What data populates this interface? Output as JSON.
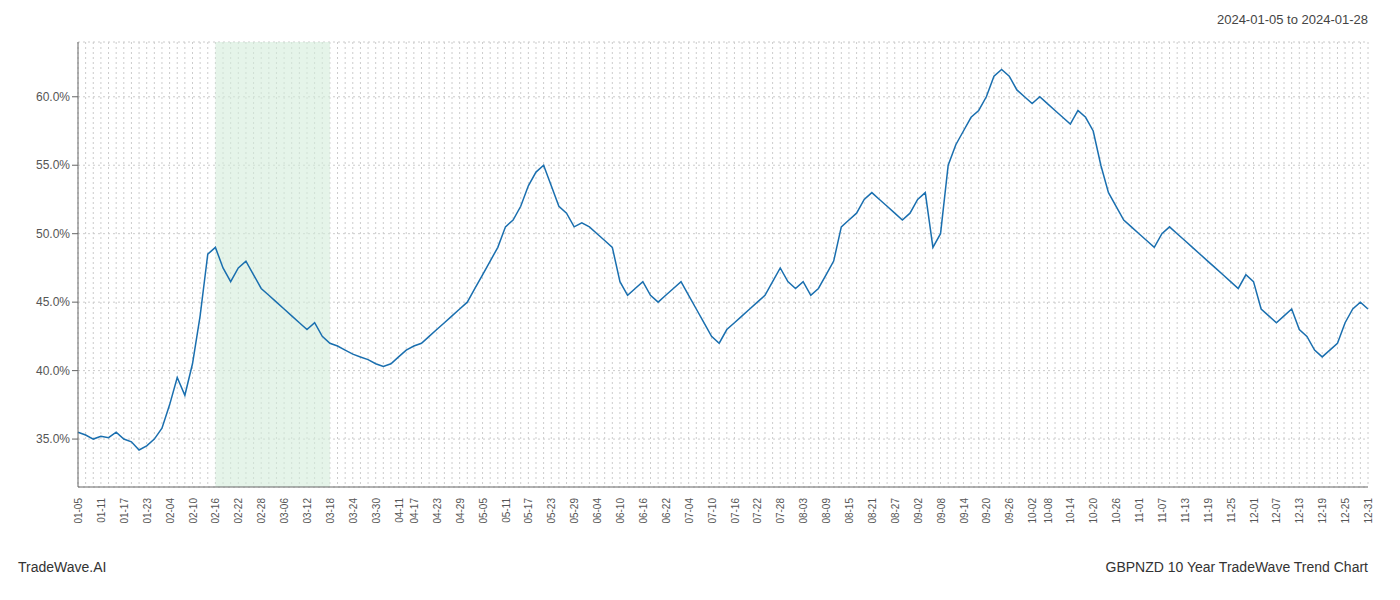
{
  "chart_data": {
    "type": "line",
    "title": "2024-01-05 to 2024-01-28",
    "annotations": [
      "TradeWave.AI",
      "GBPNZD 10 Year TradeWave Trend Chart"
    ],
    "color": "#1a6faf",
    "grid": true,
    "ylim": [
      31.5,
      64.0
    ],
    "yticks": [
      {
        "value": 35.0,
        "label": "35.0%"
      },
      {
        "value": 40.0,
        "label": "40.0%"
      },
      {
        "value": 45.0,
        "label": "45.0%"
      },
      {
        "value": 50.0,
        "label": "50.0%"
      },
      {
        "value": 55.0,
        "label": "55.0%"
      },
      {
        "value": 60.0,
        "label": "60.0%"
      }
    ],
    "shaded_region": {
      "from": "02-16",
      "to": "03-18",
      "color": "#d4edda"
    },
    "categories": [
      "01-05",
      null,
      null,
      "01-11",
      null,
      null,
      "01-17",
      null,
      null,
      "01-23",
      null,
      null,
      "02-04",
      null,
      null,
      "02-10",
      null,
      null,
      "02-16",
      null,
      null,
      "02-22",
      null,
      null,
      "02-28",
      null,
      null,
      "03-06",
      null,
      null,
      "03-12",
      null,
      null,
      "03-18",
      null,
      null,
      "03-24",
      null,
      null,
      "03-30",
      null,
      null,
      "04-11",
      null,
      "04-17",
      null,
      null,
      "04-23",
      null,
      null,
      "04-29",
      null,
      null,
      "05-05",
      null,
      null,
      "05-11",
      null,
      null,
      "05-17",
      null,
      null,
      "05-23",
      null,
      null,
      "05-29",
      null,
      null,
      "06-04",
      null,
      null,
      "06-10",
      null,
      null,
      "06-16",
      null,
      null,
      "06-22",
      null,
      null,
      "07-04",
      null,
      null,
      "07-10",
      null,
      null,
      "07-16",
      null,
      null,
      "07-22",
      null,
      null,
      "07-28",
      null,
      null,
      "08-03",
      null,
      null,
      "08-09",
      null,
      null,
      "08-15",
      null,
      null,
      "08-21",
      null,
      null,
      "08-27",
      null,
      null,
      "09-02",
      null,
      null,
      "09-08",
      null,
      null,
      "09-14",
      null,
      null,
      "09-20",
      null,
      null,
      "09-26",
      null,
      null,
      "10-02",
      null,
      "10-08",
      null,
      null,
      "10-14",
      null,
      null,
      "10-20",
      null,
      null,
      "10-26",
      null,
      null,
      "11-01",
      null,
      null,
      "11-07",
      null,
      null,
      "11-13",
      null,
      null,
      "11-19",
      null,
      null,
      "11-25",
      null,
      null,
      "12-01",
      null,
      null,
      "12-07",
      null,
      null,
      "12-13",
      null,
      null,
      "12-19",
      null,
      null,
      "12-25",
      null,
      null,
      "12-31"
    ],
    "values": [
      35.5,
      35.3,
      35.0,
      35.2,
      35.1,
      35.5,
      35.0,
      34.8,
      34.2,
      34.5,
      35.0,
      35.8,
      37.5,
      39.5,
      38.2,
      40.5,
      44.0,
      48.5,
      49.0,
      47.5,
      46.5,
      47.5,
      48.0,
      47.0,
      46.0,
      45.5,
      45.0,
      44.5,
      44.0,
      43.5,
      43.0,
      43.5,
      42.5,
      42.0,
      41.8,
      41.5,
      41.2,
      41.0,
      40.8,
      40.5,
      40.3,
      40.5,
      41.0,
      41.5,
      41.8,
      42.0,
      42.5,
      43.0,
      43.5,
      44.0,
      44.5,
      45.0,
      46.0,
      47.0,
      48.0,
      49.0,
      50.5,
      51.0,
      52.0,
      53.5,
      54.5,
      55.0,
      53.5,
      52.0,
      51.5,
      50.5,
      50.8,
      50.5,
      50.0,
      49.5,
      49.0,
      46.5,
      45.5,
      46.0,
      46.5,
      45.5,
      45.0,
      45.5,
      46.0,
      46.5,
      45.5,
      44.5,
      43.5,
      42.5,
      42.0,
      43.0,
      43.5,
      44.0,
      44.5,
      45.0,
      45.5,
      46.5,
      47.5,
      46.5,
      46.0,
      46.5,
      45.5,
      46.0,
      47.0,
      48.0,
      50.5,
      51.0,
      51.5,
      52.5,
      53.0,
      52.5,
      52.0,
      51.5,
      51.0,
      51.5,
      52.5,
      53.0,
      49.0,
      50.0,
      55.0,
      56.5,
      57.5,
      58.5,
      59.0,
      60.0,
      61.5,
      62.0,
      61.5,
      60.5,
      60.0,
      59.5,
      60.0,
      59.5,
      59.0,
      58.5,
      58.0,
      59.0,
      58.5,
      57.5,
      55.0,
      53.0,
      52.0,
      51.0,
      50.5,
      50.0,
      49.5,
      49.0,
      50.0,
      50.5,
      50.0,
      49.5,
      49.0,
      48.5,
      48.0,
      47.5,
      47.0,
      46.5,
      46.0,
      47.0,
      46.5,
      44.5,
      44.0,
      43.5,
      44.0,
      44.5,
      43.0,
      42.5,
      41.5,
      41.0,
      41.5,
      42.0,
      43.5,
      44.5,
      45.0,
      44.5
    ]
  }
}
